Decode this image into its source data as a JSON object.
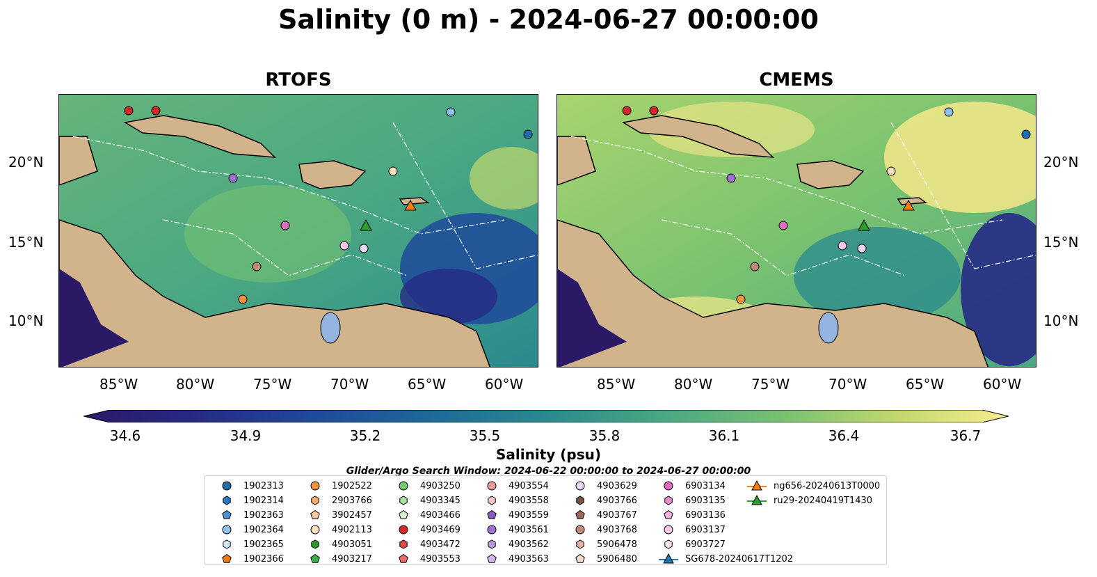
{
  "title": "Salinity (0 m) - 2024-06-27 00:00:00",
  "panels": [
    {
      "name": "RTOFS"
    },
    {
      "name": "CMEMS"
    }
  ],
  "axes": {
    "lon_ticks": [
      "85°W",
      "80°W",
      "75°W",
      "70°W",
      "65°W",
      "60°W"
    ],
    "lat_ticks": [
      "20°N",
      "15°N",
      "10°N"
    ]
  },
  "colorbar": {
    "label": "Salinity (psu)",
    "ticks": [
      "34.6",
      "34.9",
      "35.2",
      "35.5",
      "35.8",
      "36.1",
      "36.4",
      "36.7"
    ],
    "min": 34.6,
    "max": 36.7,
    "colors": [
      "#2a1a66",
      "#262a85",
      "#1f4a9a",
      "#1e6a98",
      "#2a8a8e",
      "#4aa882",
      "#7ac270",
      "#c2d86e",
      "#f8ec90"
    ]
  },
  "search_window": "Glider/Argo Search Window: 2024-06-22 00:00:00 to 2024-06-27 00:00:00",
  "map_colors": {
    "land": "#d2b48c",
    "deep": "#2a1a66",
    "mid": "#3f9a8a",
    "green": "#7ac270",
    "salty": "#f6e88a",
    "lake": "#93b5e0"
  },
  "legend": [
    {
      "label": "1902313",
      "marker": "circle",
      "color": "#1f6fae"
    },
    {
      "label": "1902314",
      "marker": "hexagon",
      "color": "#2a78c0"
    },
    {
      "label": "1902363",
      "marker": "pentagon",
      "color": "#4a92d0"
    },
    {
      "label": "1902364",
      "marker": "circle",
      "color": "#8cc2ec"
    },
    {
      "label": "1902365",
      "marker": "hexagon",
      "color": "#cfe6fa"
    },
    {
      "label": "1902366",
      "marker": "pentagon",
      "color": "#f07b10"
    },
    {
      "label": "1902522",
      "marker": "circle",
      "color": "#f5913a"
    },
    {
      "label": "2903766",
      "marker": "hexagon",
      "color": "#f7b070"
    },
    {
      "label": "3902457",
      "marker": "pentagon",
      "color": "#f8c99a"
    },
    {
      "label": "4902113",
      "marker": "circle",
      "color": "#fde0c0"
    },
    {
      "label": "4903051",
      "marker": "hexagon",
      "color": "#2e9a2e"
    },
    {
      "label": "4903217",
      "marker": "pentagon",
      "color": "#3cb043"
    },
    {
      "label": "4903250",
      "marker": "circle",
      "color": "#6fcc6a"
    },
    {
      "label": "4903345",
      "marker": "hexagon",
      "color": "#a8e4a0"
    },
    {
      "label": "4903466",
      "marker": "pentagon",
      "color": "#d6f5cf"
    },
    {
      "label": "4903469",
      "marker": "circle",
      "color": "#d62728"
    },
    {
      "label": "4903472",
      "marker": "hexagon",
      "color": "#e04848"
    },
    {
      "label": "4903553",
      "marker": "pentagon",
      "color": "#ec6c6c"
    },
    {
      "label": "4903554",
      "marker": "circle",
      "color": "#f29a9a"
    },
    {
      "label": "4903558",
      "marker": "hexagon",
      "color": "#fac8c8"
    },
    {
      "label": "4903559",
      "marker": "pentagon",
      "color": "#8a5cc4"
    },
    {
      "label": "4903561",
      "marker": "circle",
      "color": "#9d72d0"
    },
    {
      "label": "4903562",
      "marker": "hexagon",
      "color": "#b89ae0"
    },
    {
      "label": "4903563",
      "marker": "pentagon",
      "color": "#d2baef"
    },
    {
      "label": "4903629",
      "marker": "circle",
      "color": "#e6d8f7"
    },
    {
      "label": "4903766",
      "marker": "hexagon",
      "color": "#7a4e44"
    },
    {
      "label": "4903767",
      "marker": "pentagon",
      "color": "#9a6a5c"
    },
    {
      "label": "4903768",
      "marker": "circle",
      "color": "#c08a7a"
    },
    {
      "label": "5906478",
      "marker": "hexagon",
      "color": "#e0b4a4"
    },
    {
      "label": "5906480",
      "marker": "pentagon",
      "color": "#f5d8cc"
    },
    {
      "label": "6903134",
      "marker": "circle",
      "color": "#e06cc0"
    },
    {
      "label": "6903135",
      "marker": "hexagon",
      "color": "#ea8ed2"
    },
    {
      "label": "6903136",
      "marker": "pentagon",
      "color": "#f3b2e2"
    },
    {
      "label": "6903137",
      "marker": "circle",
      "color": "#f8c8ee"
    },
    {
      "label": "6903727",
      "marker": "hexagon",
      "color": "#fce4f6"
    },
    {
      "label": "SG678-20240617T1202",
      "marker": "triangle",
      "color": "#1f77b4"
    },
    {
      "label": "ng656-20240613T0000",
      "marker": "triangle",
      "color": "#ff7f0e"
    },
    {
      "label": "ru29-20240419T1430",
      "marker": "triangle",
      "color": "#2ca02c"
    }
  ]
}
